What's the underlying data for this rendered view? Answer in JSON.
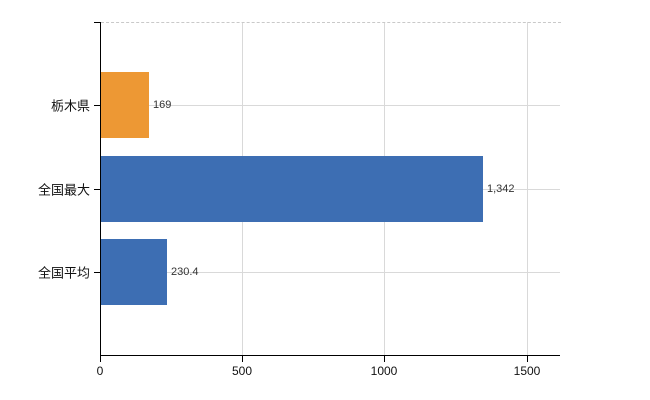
{
  "chart_data": {
    "type": "bar",
    "orientation": "horizontal",
    "title": "",
    "xlabel": "",
    "ylabel": "",
    "categories": [
      "栃木県",
      "全国最大",
      "全国平均"
    ],
    "values": [
      169,
      1342,
      230.4
    ],
    "value_labels": [
      "169",
      "1,342",
      "230.4"
    ],
    "bar_colors": [
      "#ED9834",
      "#3D6EB3",
      "#3D6EB3"
    ],
    "x_ticks": [
      0,
      500,
      1000,
      1500
    ],
    "x_tick_labels": [
      "0",
      "500",
      "1000",
      "1500"
    ],
    "xlim": [
      0,
      1617
    ],
    "grid": "on",
    "legend": "none",
    "colors": {
      "orange_bar": "#ED9834",
      "blue_bar": "#3D6EB3",
      "gridline": "#d9d9d9",
      "axis": "#000000",
      "top_border_dashed": "#c9c9c9",
      "value_text": "#333333",
      "label_text": "#111111",
      "background": "#ffffff"
    }
  }
}
